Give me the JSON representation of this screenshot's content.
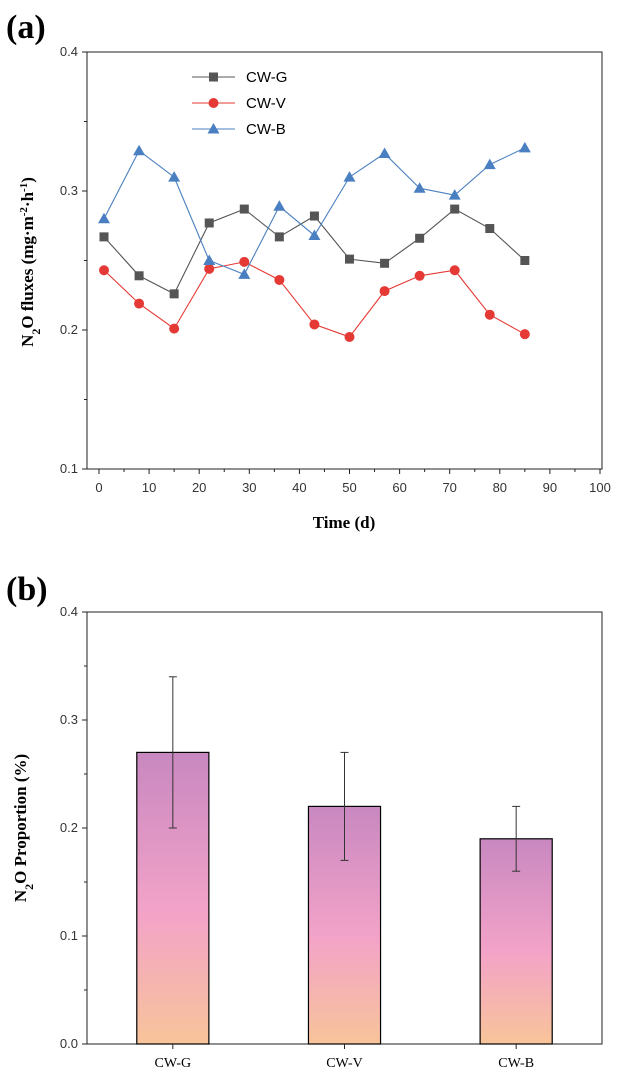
{
  "chart_data": [
    {
      "panel_label": "(a)",
      "type": "line",
      "xlabel": "Time (d)",
      "ylabel": {
        "base": "N",
        "sub": "2",
        "rest": "O fluxes (mg·m",
        "sup1": "-2",
        "mid": "·h",
        "sup2": "-1",
        "end": ")"
      },
      "xlim": [
        0,
        100
      ],
      "ylim": [
        0.1,
        0.4
      ],
      "xticks": [
        "0",
        "10",
        "20",
        "30",
        "40",
        "50",
        "60",
        "70",
        "80",
        "90",
        "100"
      ],
      "yticks": [
        "0.1",
        "0.2",
        "0.3",
        "0.4"
      ],
      "grid": false,
      "legend": "top-left",
      "x": [
        1,
        8,
        15,
        22,
        29,
        36,
        43,
        50,
        57,
        64,
        71,
        78,
        85
      ],
      "series": [
        {
          "name": "CW-G",
          "marker": "square",
          "color": "#555555",
          "values": [
            0.267,
            0.239,
            0.226,
            0.277,
            0.287,
            0.267,
            0.282,
            0.251,
            0.248,
            0.266,
            0.287,
            0.273,
            0.25
          ]
        },
        {
          "name": "CW-V",
          "marker": "circle",
          "color": "#e53935",
          "values": [
            0.243,
            0.219,
            0.201,
            0.244,
            0.249,
            0.236,
            0.204,
            0.195,
            0.228,
            0.239,
            0.243,
            0.211,
            0.197
          ]
        },
        {
          "name": "CW-B",
          "marker": "triangle",
          "color": "#4a7fc1",
          "values": [
            0.28,
            0.329,
            0.31,
            0.25,
            0.24,
            0.289,
            0.268,
            0.31,
            0.327,
            0.302,
            0.297,
            0.319,
            0.331
          ]
        }
      ]
    },
    {
      "panel_label": "(b)",
      "type": "bar",
      "ylabel": {
        "base": "N",
        "sub": "2",
        "rest": "O Proportion (%)"
      },
      "categories": [
        "CW-G",
        "CW-V",
        "CW-B"
      ],
      "values": [
        0.27,
        0.22,
        0.19
      ],
      "error_low": [
        0.2,
        0.17,
        0.16
      ],
      "error_high": [
        0.34,
        0.27,
        0.22
      ],
      "ylim": [
        0.0,
        0.4
      ],
      "yticks": [
        "0.0",
        "0.1",
        "0.2",
        "0.3",
        "0.4"
      ],
      "grid": false,
      "bar_gradient": [
        "#c888c0",
        "#f3a3c8",
        "#f8c49a"
      ]
    }
  ]
}
